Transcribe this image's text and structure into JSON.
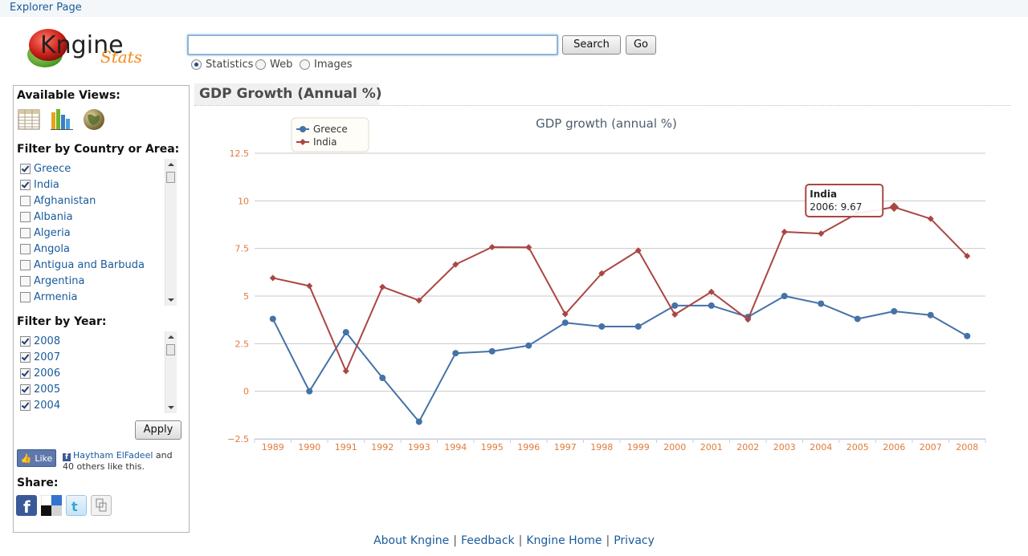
{
  "top_bar": {
    "link": "Explorer Page"
  },
  "logo": {
    "main": "Kngine",
    "sub": "Stats"
  },
  "search": {
    "value": "",
    "placeholder": "",
    "search_label": "Search",
    "go_label": "Go",
    "options": [
      {
        "label": "Statistics",
        "selected": true
      },
      {
        "label": "Web",
        "selected": false
      },
      {
        "label": "Images",
        "selected": false
      }
    ]
  },
  "sidebar": {
    "views_heading": "Available Views:",
    "views": [
      {
        "icon": "table-view-icon"
      },
      {
        "icon": "bar-chart-view-icon"
      },
      {
        "icon": "globe-map-view-icon"
      }
    ],
    "country_heading": "Filter by Country or Area:",
    "countries": [
      {
        "label": "Greece",
        "checked": true
      },
      {
        "label": "India",
        "checked": true
      },
      {
        "label": "Afghanistan",
        "checked": false
      },
      {
        "label": "Albania",
        "checked": false
      },
      {
        "label": "Algeria",
        "checked": false
      },
      {
        "label": "Angola",
        "checked": false
      },
      {
        "label": "Antigua and Barbuda",
        "checked": false
      },
      {
        "label": "Argentina",
        "checked": false
      },
      {
        "label": "Armenia",
        "checked": false
      }
    ],
    "year_heading": "Filter by Year:",
    "years": [
      {
        "label": "2008",
        "checked": true
      },
      {
        "label": "2007",
        "checked": true
      },
      {
        "label": "2006",
        "checked": true
      },
      {
        "label": "2005",
        "checked": true
      },
      {
        "label": "2004",
        "checked": true
      }
    ],
    "apply_label": "Apply",
    "like_label": "Like",
    "like_name": "Haytham ElFadeel",
    "like_suffix": " and 40 others like this.",
    "share_heading": "Share:",
    "share_icons": [
      "facebook-icon",
      "delicious-icon",
      "twitter-icon",
      "share-generic-icon"
    ]
  },
  "content": {
    "title": "GDP Growth (Annual %)"
  },
  "chart_data": {
    "type": "line",
    "title": "GDP growth (annual %)",
    "xlabel": "",
    "ylabel": "",
    "categories": [
      "1989",
      "1990",
      "1991",
      "1992",
      "1993",
      "1994",
      "1995",
      "1996",
      "1997",
      "1998",
      "1999",
      "2000",
      "2001",
      "2002",
      "2003",
      "2004",
      "2005",
      "2006",
      "2007",
      "2008"
    ],
    "ylim": [
      -2.5,
      12.5
    ],
    "yticks": [
      12.5,
      10,
      7.5,
      5,
      2.5,
      0,
      -2.5
    ],
    "ytick_labels": [
      "12.5",
      "10",
      "7.5",
      "5",
      "2.5",
      "0",
      "−2.5"
    ],
    "grid": true,
    "legend_position": "top-left",
    "series": [
      {
        "name": "Greece",
        "color": "#4572a7",
        "marker": "circle",
        "values": [
          3.8,
          0.0,
          3.1,
          0.7,
          -1.6,
          2.0,
          2.1,
          2.4,
          3.6,
          3.4,
          3.4,
          4.5,
          4.5,
          3.9,
          5.0,
          4.6,
          3.8,
          4.2,
          4.0,
          2.9
        ]
      },
      {
        "name": "India",
        "color": "#aa4643",
        "marker": "diamond",
        "values": [
          5.95,
          5.53,
          1.06,
          5.48,
          4.77,
          6.66,
          7.57,
          7.56,
          4.05,
          6.19,
          7.39,
          4.03,
          5.22,
          3.77,
          8.37,
          8.28,
          9.35,
          9.67,
          9.06,
          7.1
        ]
      }
    ],
    "tooltip": {
      "series": "India",
      "text": "2006: 9.67",
      "category": "2006"
    }
  },
  "colors": {
    "accent": "#1a5a9a",
    "axis_labels": "#e07b3a",
    "greece": "#4572a7",
    "india": "#aa4643"
  },
  "footer": {
    "links": [
      "About Kngine",
      "Feedback",
      "Kngine Home",
      "Privacy"
    ]
  }
}
